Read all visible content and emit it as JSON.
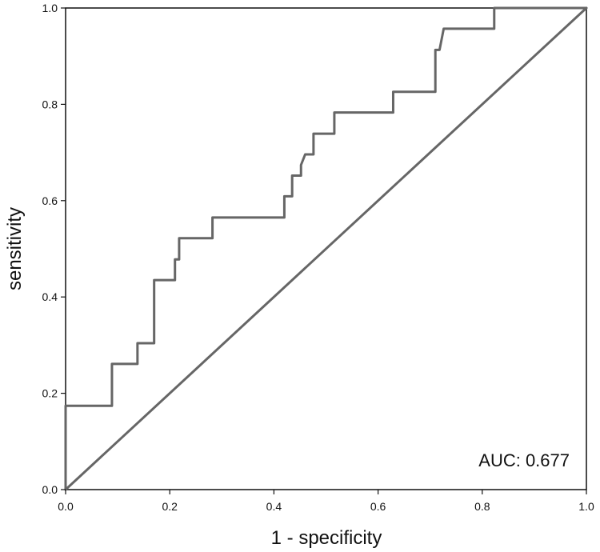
{
  "chart_data": {
    "type": "line",
    "title": "",
    "xlabel": "1 - specificity",
    "ylabel": "sensitivity",
    "xlim": [
      0,
      1
    ],
    "ylim": [
      0,
      1
    ],
    "grid": false,
    "x_ticks": [
      "0.0",
      "0.2",
      "0.4",
      "0.6",
      "0.8",
      "1.0"
    ],
    "y_ticks": [
      "0.0",
      "0.2",
      "0.4",
      "0.6",
      "0.8",
      "1.0"
    ],
    "annotation": "AUC: 0.677",
    "colors": {
      "roc": "#666666",
      "diagonal": "#666666",
      "frame": "#111111"
    },
    "series": [
      {
        "type": "step",
        "points": [
          [
            0.0,
            0.0
          ],
          [
            0.0,
            0.174
          ],
          [
            0.089,
            0.174
          ],
          [
            0.089,
            0.261
          ],
          [
            0.138,
            0.261
          ],
          [
            0.138,
            0.304
          ],
          [
            0.17,
            0.304
          ],
          [
            0.17,
            0.435
          ],
          [
            0.21,
            0.435
          ],
          [
            0.21,
            0.478
          ],
          [
            0.218,
            0.478
          ],
          [
            0.218,
            0.522
          ],
          [
            0.282,
            0.522
          ],
          [
            0.282,
            0.565
          ],
          [
            0.42,
            0.565
          ],
          [
            0.42,
            0.609
          ],
          [
            0.435,
            0.609
          ],
          [
            0.435,
            0.652
          ],
          [
            0.452,
            0.652
          ],
          [
            0.452,
            0.674
          ],
          [
            0.46,
            0.696
          ],
          [
            0.476,
            0.696
          ],
          [
            0.476,
            0.739
          ],
          [
            0.516,
            0.739
          ],
          [
            0.516,
            0.783
          ],
          [
            0.629,
            0.783
          ],
          [
            0.629,
            0.826
          ],
          [
            0.71,
            0.826
          ],
          [
            0.71,
            0.913
          ],
          [
            0.718,
            0.913
          ],
          [
            0.726,
            0.957
          ],
          [
            0.823,
            0.957
          ],
          [
            0.823,
            1.0
          ],
          [
            1.0,
            1.0
          ]
        ]
      },
      {
        "type": "reference",
        "points": [
          [
            0.0,
            0.0
          ],
          [
            1.0,
            1.0
          ]
        ]
      }
    ]
  }
}
